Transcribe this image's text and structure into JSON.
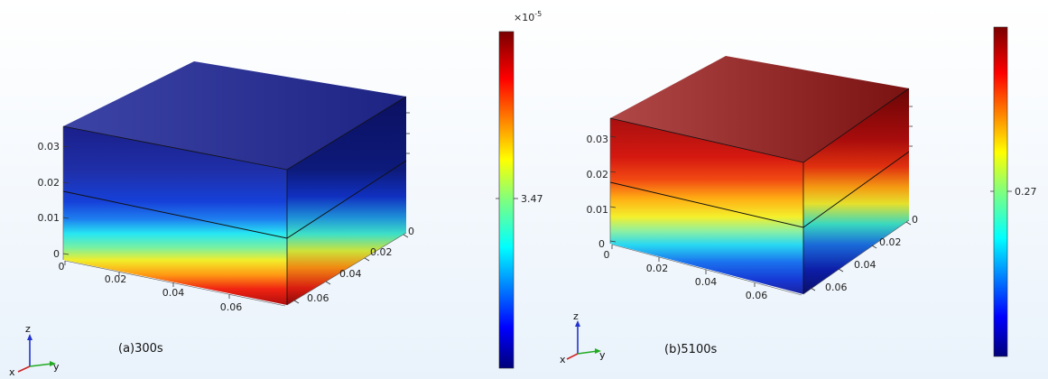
{
  "panels": [
    {
      "caption": "(a)300s",
      "z_ticks": [
        "0",
        "0.01",
        "0.02",
        "0.03"
      ],
      "x_ticks": [
        "0",
        "0.02",
        "0.04",
        "0.06"
      ],
      "y_ticks": [
        "0",
        "0.02",
        "0.04",
        "0.06"
      ],
      "colorbar": {
        "multiplier": "×10",
        "exponent": "-5",
        "tick_label": "3.47"
      },
      "triad": {
        "z": "z",
        "y": "y",
        "x": "x"
      }
    },
    {
      "caption": "(b)5100s",
      "z_ticks": [
        "0",
        "0.01",
        "0.02",
        "0.03"
      ],
      "x_ticks": [
        "0",
        "0.02",
        "0.04",
        "0.06"
      ],
      "y_ticks": [
        "0",
        "0.02",
        "0.04",
        "0.06"
      ],
      "colorbar": {
        "multiplier": "",
        "exponent": "",
        "tick_label": "0.27"
      },
      "triad": {
        "z": "z",
        "y": "y",
        "x": "x"
      }
    }
  ]
}
